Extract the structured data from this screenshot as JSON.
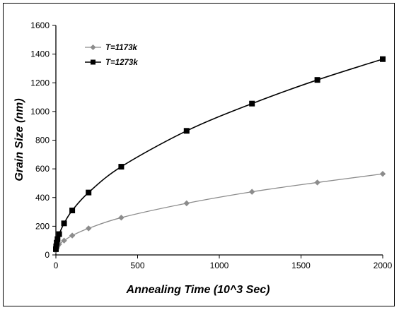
{
  "chart_data": {
    "type": "line",
    "title": "",
    "xlabel": "Annealing Time (10^3 Sec)",
    "ylabel": "Grain Size (nm)",
    "xlim": [
      0,
      2000
    ],
    "ylim": [
      0,
      1600
    ],
    "xticks": [
      0,
      500,
      1000,
      1500,
      2000
    ],
    "yticks": [
      0,
      200,
      400,
      600,
      800,
      1000,
      1200,
      1400,
      1600
    ],
    "grid": false,
    "legend_position": "top-left",
    "series": [
      {
        "name": "T=1173k",
        "color": "#8c8c8c",
        "marker": "diamond",
        "x": [
          0,
          2,
          5,
          10,
          20,
          50,
          100,
          200,
          400,
          800,
          1200,
          1600,
          2000
        ],
        "y": [
          30,
          40,
          50,
          60,
          75,
          100,
          135,
          185,
          260,
          360,
          440,
          505,
          565
        ]
      },
      {
        "name": "T=1273k",
        "color": "#000000",
        "marker": "square",
        "x": [
          0,
          2,
          5,
          10,
          20,
          50,
          100,
          200,
          400,
          800,
          1200,
          1600,
          2000
        ],
        "y": [
          40,
          60,
          85,
          110,
          145,
          220,
          310,
          435,
          615,
          865,
          1055,
          1220,
          1365
        ]
      }
    ]
  }
}
